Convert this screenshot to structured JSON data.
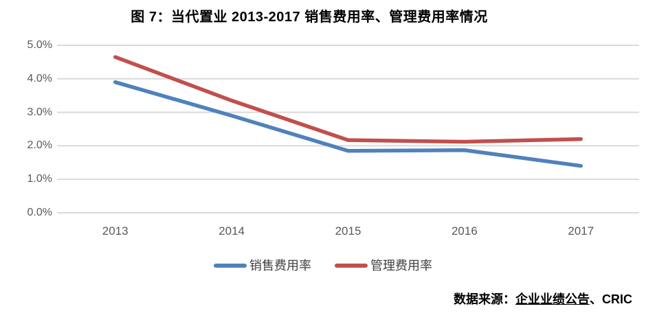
{
  "chart": {
    "title": "图 7：当代置业 2013-2017 销售费用率、管理费用率情况"
  },
  "source": {
    "prefix": "数据来源：",
    "underlined": "企业业绩公告",
    "suffix": "、CRIC"
  },
  "chart_data": {
    "type": "line",
    "title": "图 7：当代置业 2013-2017 销售费用率、管理费用率情况",
    "categories": [
      "2013",
      "2014",
      "2015",
      "2016",
      "2017"
    ],
    "series": [
      {
        "name": "销售费用率",
        "color": "#4f81bd",
        "values": [
          3.9,
          2.9,
          1.85,
          1.87,
          1.4
        ]
      },
      {
        "name": "管理费用率",
        "color": "#c0504d",
        "values": [
          4.65,
          3.35,
          2.17,
          2.12,
          2.2
        ]
      }
    ],
    "xlabel": "",
    "ylabel": "",
    "ylim": [
      0,
      5
    ],
    "yticks": [
      {
        "value": 0,
        "label": "0.0%"
      },
      {
        "value": 1,
        "label": "1.0%"
      },
      {
        "value": 2,
        "label": "2.0%"
      },
      {
        "value": 3,
        "label": "3.0%"
      },
      {
        "value": 4,
        "label": "4.0%"
      },
      {
        "value": 5,
        "label": "5.0%"
      }
    ],
    "grid": true,
    "gridline_color": "#d9d9d9",
    "legend_position": "bottom",
    "source_note": "数据来源：企业业绩公告、CRIC"
  }
}
